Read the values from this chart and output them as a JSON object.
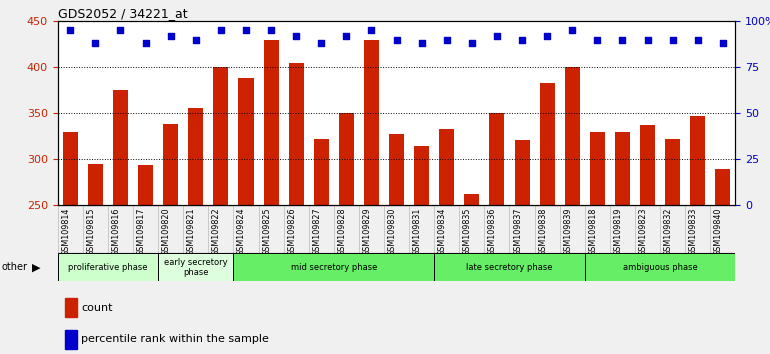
{
  "title": "GDS2052 / 34221_at",
  "samples": [
    "GSM109814",
    "GSM109815",
    "GSM109816",
    "GSM109817",
    "GSM109820",
    "GSM109821",
    "GSM109822",
    "GSM109824",
    "GSM109825",
    "GSM109826",
    "GSM109827",
    "GSM109828",
    "GSM109829",
    "GSM109830",
    "GSM109831",
    "GSM109834",
    "GSM109835",
    "GSM109836",
    "GSM109837",
    "GSM109838",
    "GSM109839",
    "GSM109818",
    "GSM109819",
    "GSM109823",
    "GSM109832",
    "GSM109833",
    "GSM109840"
  ],
  "bar_values": [
    330,
    295,
    375,
    294,
    338,
    356,
    400,
    388,
    430,
    405,
    322,
    350,
    430,
    328,
    314,
    333,
    262,
    350,
    321,
    383,
    400,
    330,
    330,
    337,
    322,
    347,
    290
  ],
  "percentile_values": [
    95,
    88,
    95,
    88,
    92,
    90,
    95,
    95,
    95,
    92,
    88,
    92,
    95,
    90,
    88,
    90,
    88,
    92,
    90,
    92,
    95,
    90,
    90,
    90,
    90,
    90,
    88
  ],
  "ylim_left": [
    250,
    450
  ],
  "ylim_right": [
    0,
    100
  ],
  "yticks_left": [
    250,
    300,
    350,
    400,
    450
  ],
  "yticks_right": [
    0,
    25,
    50,
    75,
    100
  ],
  "yticklabels_right": [
    "0",
    "25",
    "50",
    "75",
    "100%"
  ],
  "bar_color": "#cc2200",
  "dot_color": "#0000cc",
  "phases": [
    {
      "label": "proliferative phase",
      "start": 0,
      "end": 4,
      "color": "#ccffcc"
    },
    {
      "label": "early secretory\nphase",
      "start": 4,
      "end": 7,
      "color": "#ddffdd"
    },
    {
      "label": "mid secretory phase",
      "start": 7,
      "end": 15,
      "color": "#66ee66"
    },
    {
      "label": "late secretory phase",
      "start": 15,
      "end": 21,
      "color": "#66ee66"
    },
    {
      "label": "ambiguous phase",
      "start": 21,
      "end": 27,
      "color": "#66ee66"
    }
  ],
  "legend_count_color": "#cc2200",
  "legend_dot_color": "#0000cc",
  "fig_bg_color": "#f0f0f0",
  "plot_bg_color": "#ffffff",
  "tick_label_bg": "#d8d8d8"
}
